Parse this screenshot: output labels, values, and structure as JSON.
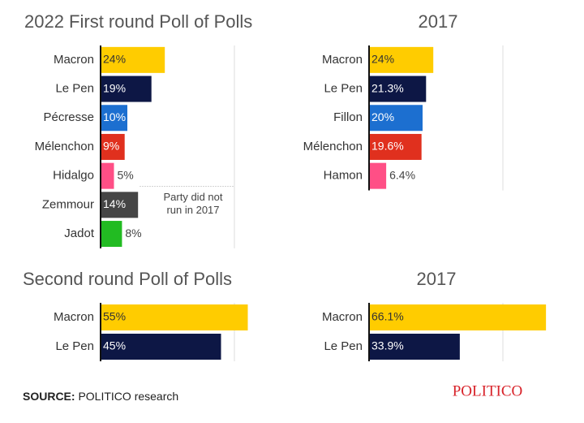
{
  "chart_data": [
    {
      "type": "bar",
      "orientation": "horizontal",
      "title": "2022 First round Poll of Polls",
      "categories": [
        "Macron",
        "Le Pen",
        "Pécresse",
        "Mélenchon",
        "Hidalgo",
        "Zemmour",
        "Jadot"
      ],
      "values": [
        24,
        19,
        10,
        9,
        5,
        14,
        8
      ],
      "value_labels": [
        "24%",
        "19%",
        "10%",
        "9%",
        "5%",
        "14%",
        "8%"
      ],
      "colors": [
        "#ffcc00",
        "#0d1745",
        "#1c6fd0",
        "#e0301e",
        "#ff4f86",
        "#454545",
        "#22bb22"
      ],
      "annotation": [
        "Party did not",
        "run in 2017"
      ],
      "xlim": [
        0,
        100
      ],
      "xticks": [
        50
      ],
      "grid": true
    },
    {
      "type": "bar",
      "orientation": "horizontal",
      "title": "2017",
      "categories": [
        "Macron",
        "Le Pen",
        "Fillon",
        "Mélenchon",
        "Hamon"
      ],
      "values": [
        24,
        21.3,
        20,
        19.6,
        6.4
      ],
      "value_labels": [
        "24%",
        "21.3%",
        "20%",
        "19.6%",
        "6.4%"
      ],
      "colors": [
        "#ffcc00",
        "#0d1745",
        "#1c6fd0",
        "#e0301e",
        "#ff4f86"
      ],
      "xlim": [
        0,
        100
      ],
      "xticks": [
        50
      ],
      "grid": true
    },
    {
      "type": "bar",
      "orientation": "horizontal",
      "title": "Second round Poll of Polls",
      "categories": [
        "Macron",
        "Le Pen"
      ],
      "values": [
        55,
        45
      ],
      "value_labels": [
        "55%",
        "45%"
      ],
      "colors": [
        "#ffcc00",
        "#0d1745"
      ],
      "xlim": [
        0,
        100
      ],
      "xticks": [
        50
      ],
      "grid": true
    },
    {
      "type": "bar",
      "orientation": "horizontal",
      "title": "2017",
      "categories": [
        "Macron",
        "Le Pen"
      ],
      "values": [
        66.1,
        33.9
      ],
      "value_labels": [
        "66.1%",
        "33.9%"
      ],
      "colors": [
        "#ffcc00",
        "#0d1745"
      ],
      "xlim": [
        0,
        100
      ],
      "xticks": [
        50
      ],
      "grid": true
    }
  ],
  "source": {
    "label": "SOURCE:",
    "text": "POLITICO research"
  },
  "logo": "POLITICO"
}
